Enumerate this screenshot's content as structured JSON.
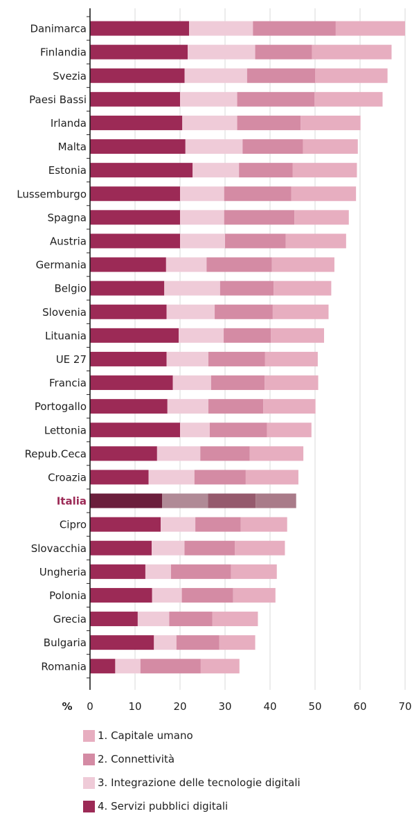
{
  "chart_data": {
    "type": "bar",
    "orientation": "horizontal",
    "stacked": true,
    "unit_label": "%",
    "categories": [
      "Danimarca",
      "Finlandia",
      "Svezia",
      "Paesi Bassi",
      "Irlanda",
      "Malta",
      "Estonia",
      "Lussemburgo",
      "Spagna",
      "Austria",
      "Germania",
      "Belgio",
      "Slovenia",
      "Lituania",
      "UE 27",
      "Francia",
      "Portogallo",
      "Lettonia",
      "Repub.Ceca",
      "Croazia",
      "Italia",
      "Cipro",
      "Slovacchia",
      "Ungheria",
      "Polonia",
      "Grecia",
      "Bulgaria",
      "Romania"
    ],
    "series": [
      {
        "key": "s4",
        "name": "4. Servizi pubblici digitali",
        "color": "#9c2a56",
        "highlight_color": "#6b1f3c",
        "values": [
          22,
          21.7,
          21,
          20,
          20.5,
          21.2,
          22.8,
          20,
          20,
          20,
          16.9,
          16.5,
          17,
          19.7,
          17,
          18.4,
          17.2,
          20,
          14.9,
          13,
          16,
          15.7,
          13.7,
          12.3,
          13.8,
          10.6,
          14.2,
          5.6
        ]
      },
      {
        "key": "s3",
        "name": "3. Integrazione delle tecnologie digitali",
        "color": "#efcbd8",
        "highlight_color": "#b08a96",
        "values": [
          14.2,
          15,
          13.9,
          12.7,
          12.2,
          12.7,
          10.3,
          9.8,
          9.8,
          10,
          9,
          12.4,
          10.7,
          10,
          9.3,
          8.5,
          9.1,
          6.6,
          9.6,
          10.2,
          10.2,
          7.7,
          7.3,
          5.7,
          6.6,
          7,
          5,
          5.6
        ]
      },
      {
        "key": "s2",
        "name": "2. Connettività",
        "color": "#d48ba4",
        "highlight_color": "#955a6d",
        "values": [
          18.4,
          12.6,
          15.1,
          17.2,
          14.1,
          13.4,
          11.9,
          14.9,
          15.6,
          13.5,
          14.5,
          11.9,
          12.9,
          10.5,
          12.6,
          11.9,
          12.2,
          12.7,
          11,
          11.4,
          10.6,
          10.1,
          11.2,
          13.3,
          11.4,
          9.6,
          9.5,
          13.4
        ]
      },
      {
        "key": "s1",
        "name": "1. Capitale umano",
        "color": "#e7aec0",
        "highlight_color": "#a97b89",
        "values": [
          15.4,
          17.7,
          16.1,
          15.1,
          13.3,
          12.2,
          14.3,
          14.4,
          12.1,
          13.4,
          13.9,
          12.8,
          12.4,
          11.8,
          11.7,
          11.9,
          11.6,
          9.9,
          11.9,
          11.7,
          9,
          10.3,
          11.1,
          10.2,
          9.4,
          10.1,
          8,
          8.6
        ]
      }
    ],
    "legend_order": [
      "s1",
      "s2",
      "s3",
      "s4"
    ],
    "highlight_category": "Italia",
    "highlight_label_color": "#9c2a56",
    "emphasized_categories": [
      "UE 27"
    ],
    "xlim": [
      0,
      70
    ],
    "xticks": [
      0,
      10,
      20,
      30,
      40,
      50,
      60,
      70
    ],
    "grid": true,
    "legend_position": "bottom"
  }
}
